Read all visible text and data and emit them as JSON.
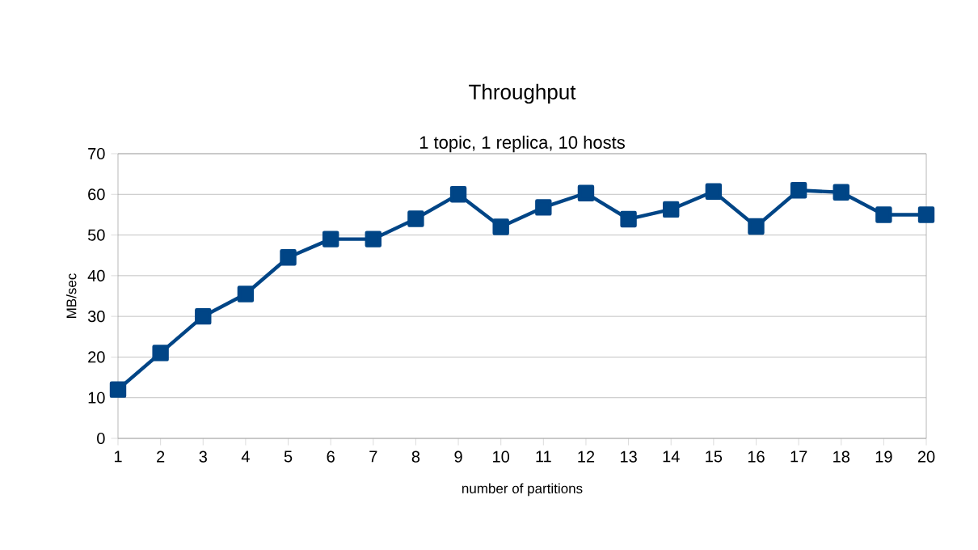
{
  "chart_data": {
    "type": "line",
    "title": "Throughput",
    "subtitle": "1 topic, 1 replica, 10 hosts",
    "xlabel": "number of partitions",
    "ylabel": "MB/sec",
    "x": [
      1,
      2,
      3,
      4,
      5,
      6,
      7,
      8,
      9,
      10,
      11,
      12,
      13,
      14,
      15,
      16,
      17,
      18,
      19,
      20
    ],
    "series": [
      {
        "color": "#004586",
        "values": [
          12,
          21,
          30,
          35.5,
          44.5,
          49,
          49,
          54,
          60,
          52,
          56.8,
          60.3,
          53.9,
          56.3,
          60.7,
          52.1,
          61,
          60.5,
          55,
          55
        ]
      }
    ],
    "xlim": [
      1,
      20
    ],
    "xticks": [
      1,
      2,
      3,
      4,
      5,
      6,
      7,
      8,
      9,
      10,
      11,
      12,
      13,
      14,
      15,
      16,
      17,
      18,
      19,
      20
    ],
    "ylim": [
      0,
      70
    ],
    "yticks": [
      0,
      10,
      20,
      30,
      40,
      50,
      60,
      70
    ],
    "grid": "y",
    "marker": "square",
    "line_style": "solid"
  }
}
